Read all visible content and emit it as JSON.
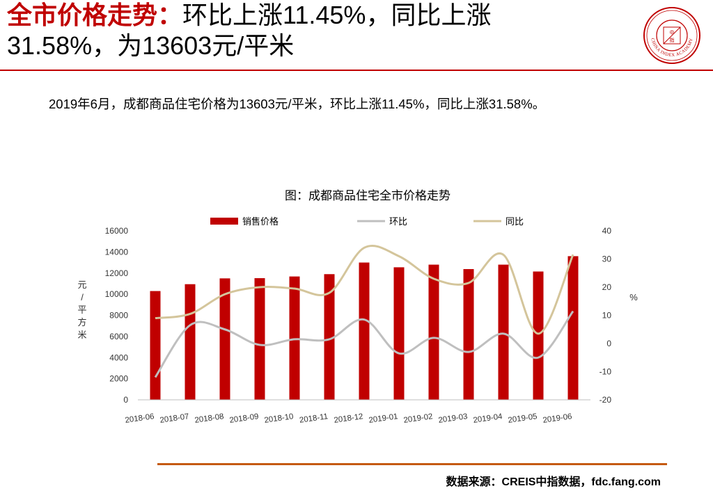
{
  "header": {
    "title_red": "全市价格走势：",
    "title_rest": "环比上涨11.45%，同比上涨",
    "title_line2": "31.58%，为13603元/平米"
  },
  "logo": {
    "icon": "china-index-academy-seal-icon",
    "text": "CHINA INDEX ACADEMY"
  },
  "subtitle": "2019年6月，成都商品住宅价格为13603元/平米，环比上涨11.45%，同比上涨31.58%。",
  "source": "数据来源：CREIS中指数据，fdc.fang.com",
  "colors": {
    "accent": "#C00000",
    "bar": "#C00000",
    "mom_line": "#BFBFBF",
    "yoy_line": "#D4C59B",
    "footer_rule": "#C55A11"
  },
  "chart_data": {
    "type": "bar",
    "title": "图：成都商品住宅全市价格走势",
    "categories": [
      "2018-06",
      "2018-07",
      "2018-08",
      "2018-09",
      "2018-10",
      "2018-11",
      "2018-12",
      "2019-01",
      "2019-02",
      "2019-03",
      "2019-04",
      "2019-05",
      "2019-06"
    ],
    "series": [
      {
        "name": "销售价格",
        "type": "bar",
        "axis": "left",
        "values": [
          10300,
          10950,
          11500,
          11520,
          11680,
          11900,
          13000,
          12550,
          12800,
          12380,
          12800,
          12150,
          13603
        ]
      },
      {
        "name": "环比",
        "type": "line",
        "axis": "right",
        "values": [
          -12,
          6.5,
          5,
          -0.5,
          1.5,
          1.5,
          8.5,
          -3.5,
          2,
          -3,
          3.5,
          -5,
          11.45
        ]
      },
      {
        "name": "同比",
        "type": "line",
        "axis": "right",
        "values": [
          9,
          10.5,
          17.5,
          20,
          19.5,
          18,
          34,
          31,
          23,
          21.5,
          31.5,
          3.5,
          31.58
        ]
      }
    ],
    "ylabel": "元/平方米",
    "y2label": "%",
    "ylim": [
      0,
      16000
    ],
    "yticks": [
      "0",
      "2000",
      "4000",
      "6000",
      "8000",
      "10000",
      "12000",
      "14000",
      "16000"
    ],
    "y2lim": [
      -20,
      40
    ],
    "y2ticks": [
      "-20",
      "-10",
      "0",
      "10",
      "20",
      "30",
      "40"
    ],
    "legend_position": "top",
    "grid": false
  }
}
